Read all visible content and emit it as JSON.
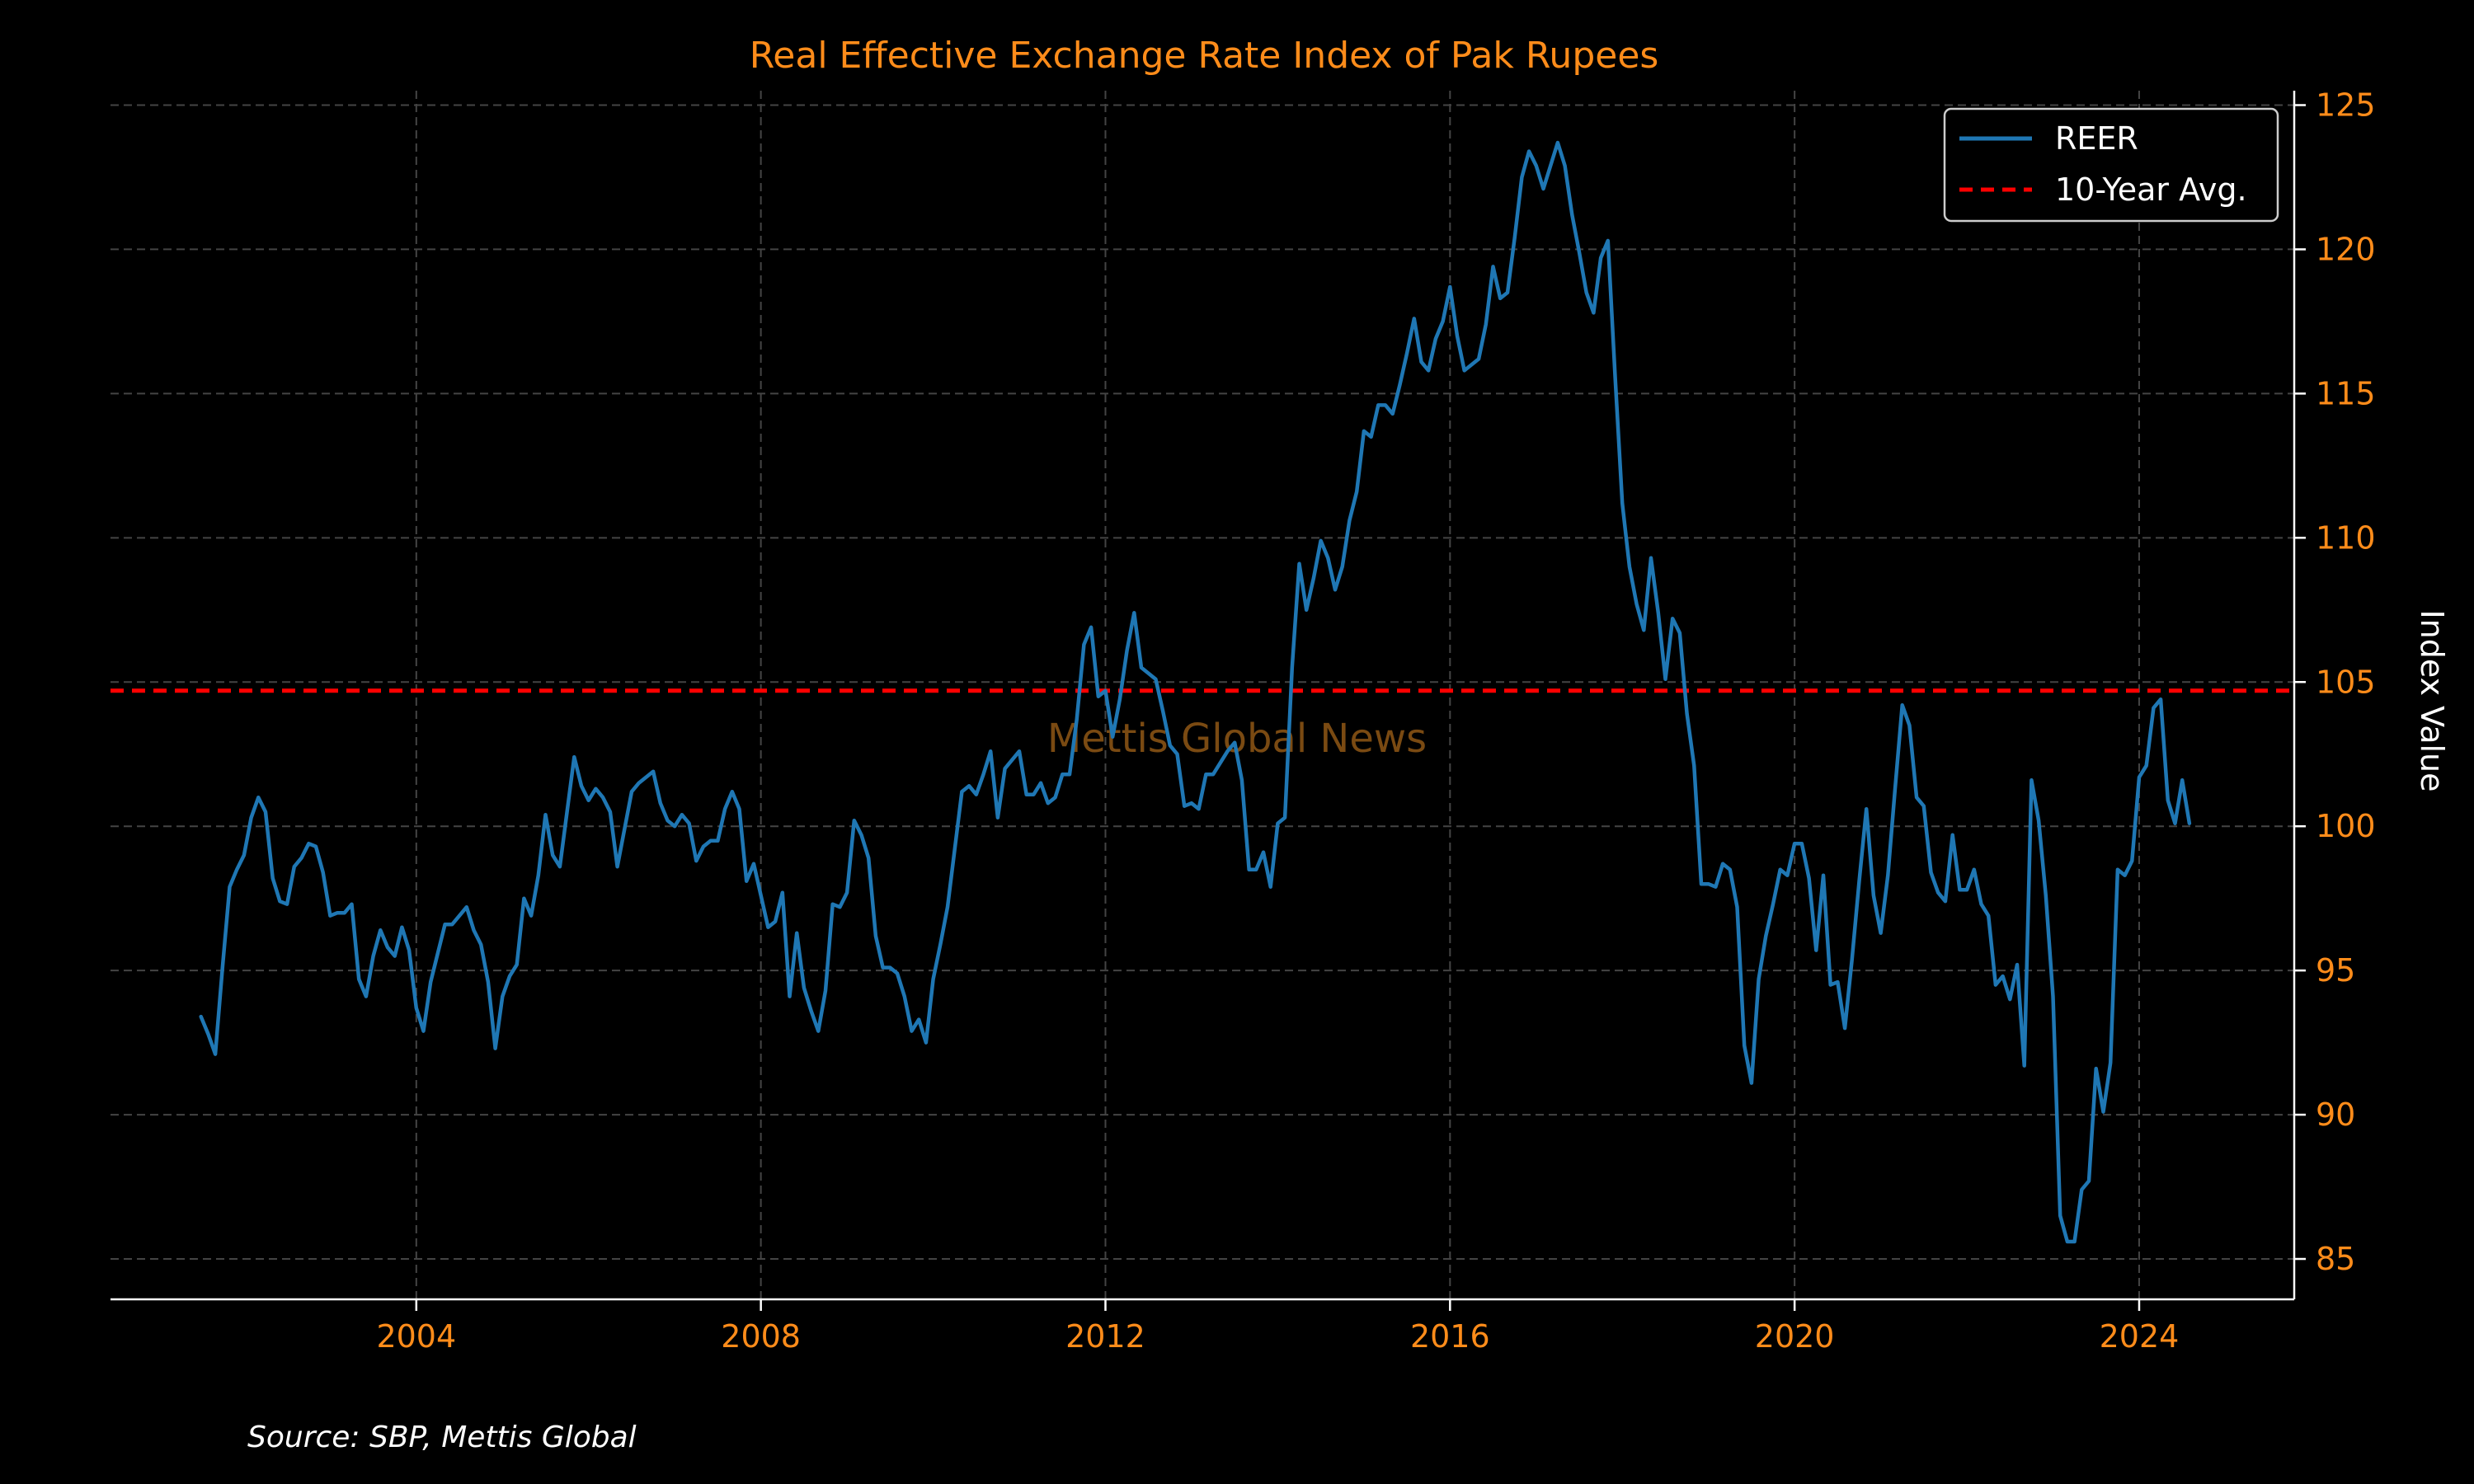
{
  "colors": {
    "background": "#000000",
    "accent": "#ff8c1a",
    "series": "#1f77b4",
    "avg_line": "#ff0000",
    "grid": "#444444",
    "watermark": "#7a4a12",
    "text": "#ffffff"
  },
  "watermark": "Mettis Global News",
  "source": "Source: SBP, Mettis Global",
  "chart_data": {
    "type": "line",
    "title": "Real Effective Exchange Rate Index of Pak Rupees",
    "xlabel": "",
    "ylabel": "Index Value",
    "xlim": [
      2000.45,
      2025.8
    ],
    "ylim": [
      83.6,
      125.5
    ],
    "x_ticks": [
      2004,
      2008,
      2012,
      2016,
      2020,
      2024
    ],
    "y_ticks": [
      85,
      90,
      95,
      100,
      105,
      110,
      115,
      120,
      125
    ],
    "grid": true,
    "legend_position": "top-right",
    "series": [
      {
        "name": "REER",
        "x_start": 2001.5,
        "x_step_months": 1,
        "values": [
          93.4,
          92.8,
          92.1,
          95.1,
          97.9,
          98.5,
          99.0,
          100.3,
          101.0,
          100.5,
          98.2,
          97.4,
          97.3,
          98.6,
          98.9,
          99.4,
          99.3,
          98.4,
          96.9,
          97.0,
          97.0,
          97.3,
          94.7,
          94.1,
          95.5,
          96.4,
          95.8,
          95.5,
          96.5,
          95.7,
          93.7,
          92.9,
          94.6,
          95.6,
          96.6,
          96.6,
          96.9,
          97.2,
          96.4,
          95.9,
          94.6,
          92.3,
          94.1,
          94.8,
          95.2,
          97.5,
          96.9,
          98.3,
          100.4,
          99.0,
          98.6,
          100.5,
          102.4,
          101.4,
          100.9,
          101.3,
          101.0,
          100.5,
          98.6,
          99.9,
          101.2,
          101.5,
          101.7,
          101.9,
          100.8,
          100.2,
          100.0,
          100.4,
          100.1,
          98.8,
          99.3,
          99.5,
          99.5,
          100.6,
          101.2,
          100.6,
          98.1,
          98.7,
          97.6,
          96.5,
          96.7,
          97.7,
          94.1,
          96.3,
          94.4,
          93.6,
          92.9,
          94.3,
          97.3,
          97.2,
          97.7,
          100.2,
          99.7,
          98.9,
          96.2,
          95.1,
          95.1,
          94.9,
          94.1,
          92.9,
          93.3,
          92.5,
          94.7,
          95.9,
          97.2,
          99.2,
          101.2,
          101.4,
          101.1,
          101.8,
          102.6,
          100.3,
          102.0,
          102.3,
          102.6,
          101.1,
          101.1,
          101.5,
          100.8,
          101.0,
          101.8,
          101.8,
          103.7,
          106.3,
          106.9,
          104.5,
          104.7,
          103.1,
          104.4,
          106.1,
          107.4,
          105.5,
          105.3,
          105.1,
          104.0,
          102.8,
          102.5,
          100.7,
          100.8,
          100.6,
          101.8,
          101.8,
          102.2,
          102.6,
          102.9,
          101.6,
          98.5,
          98.5,
          99.1,
          97.9,
          100.1,
          100.3,
          105.5,
          109.1,
          107.5,
          108.6,
          109.9,
          109.3,
          108.2,
          109.0,
          110.6,
          111.6,
          113.7,
          113.5,
          114.6,
          114.6,
          114.3,
          115.3,
          116.4,
          117.6,
          116.1,
          115.8,
          116.9,
          117.5,
          118.7,
          117.0,
          115.8,
          116.0,
          116.2,
          117.4,
          119.4,
          118.3,
          118.5,
          120.4,
          122.5,
          123.4,
          122.9,
          122.1,
          122.9,
          123.7,
          122.9,
          121.2,
          119.9,
          118.5,
          117.8,
          119.7,
          120.3,
          115.6,
          111.2,
          109.0,
          107.7,
          106.8,
          109.3,
          107.4,
          105.1,
          107.2,
          106.7,
          103.9,
          102.1,
          98.0,
          98.0,
          97.9,
          98.7,
          98.5,
          97.2,
          92.4,
          91.1,
          94.7,
          96.2,
          97.3,
          98.5,
          98.3,
          99.4,
          99.4,
          98.2,
          95.7,
          98.3,
          94.5,
          94.6,
          93.0,
          95.4,
          98.1,
          100.6,
          97.6,
          96.3,
          98.3,
          101.3,
          104.2,
          103.5,
          101.0,
          100.7,
          98.4,
          97.7,
          97.4,
          99.7,
          97.8,
          97.8,
          98.5,
          97.3,
          96.9,
          94.5,
          94.8,
          94.0,
          95.2,
          91.7,
          101.6,
          100.2,
          97.6,
          94.1,
          86.5,
          85.6,
          85.6,
          87.4,
          87.7,
          91.6,
          90.1,
          91.8,
          98.5,
          98.3,
          98.8,
          101.7,
          102.1,
          104.1,
          104.4,
          100.9,
          100.1,
          101.6,
          100.1
        ]
      },
      {
        "name": "10-Year Avg.",
        "style": "dashed",
        "constant": 104.7
      }
    ]
  }
}
